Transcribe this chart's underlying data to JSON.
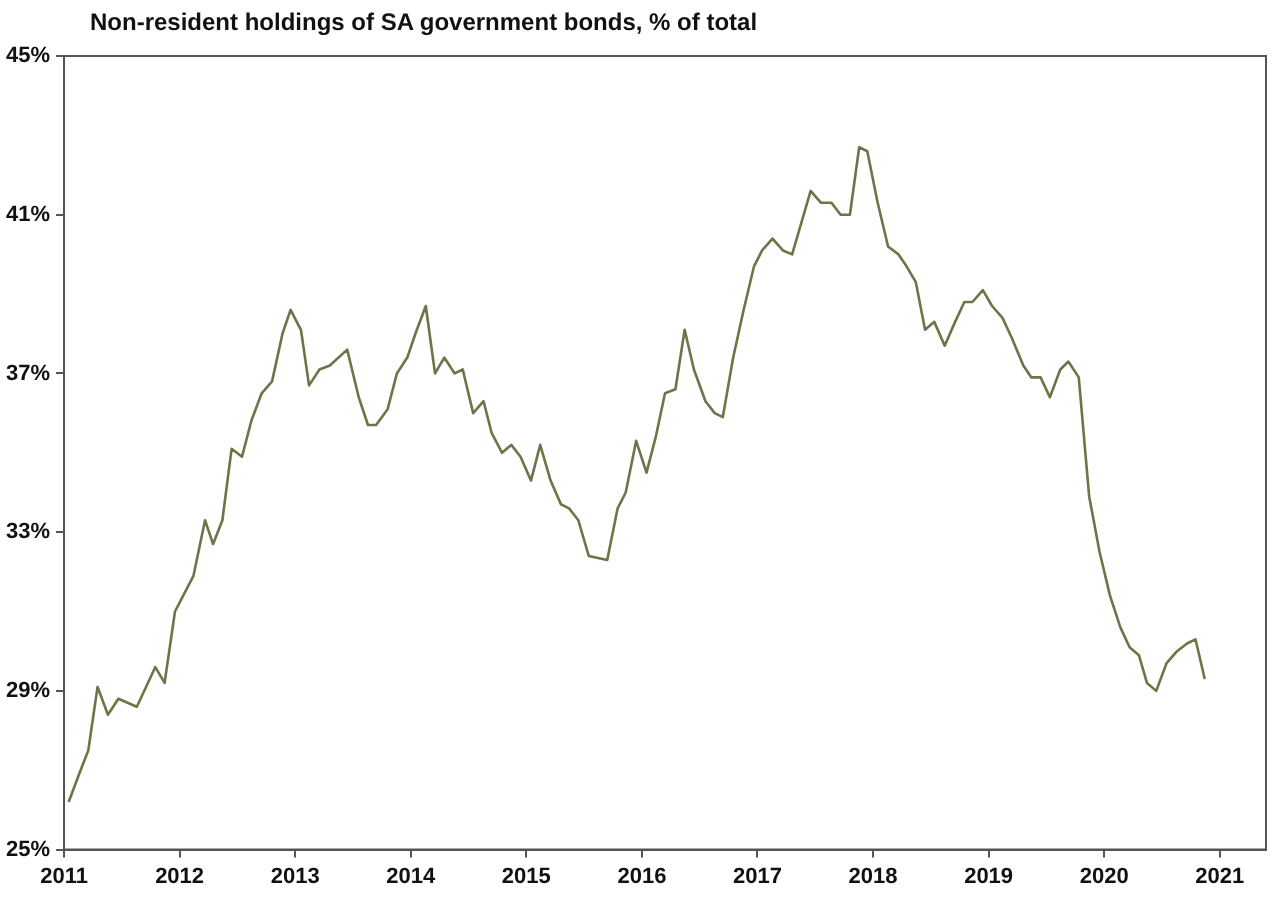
{
  "chart_data": {
    "type": "line",
    "title": "Non-resident holdings of SA government bonds, % of total",
    "x": [
      2011.04,
      2011.13,
      2011.21,
      2011.29,
      2011.38,
      2011.47,
      2011.63,
      2011.79,
      2011.87,
      2011.96,
      2012.12,
      2012.22,
      2012.29,
      2012.37,
      2012.45,
      2012.54,
      2012.62,
      2012.71,
      2012.8,
      2012.89,
      2012.96,
      2013.05,
      2013.12,
      2013.21,
      2013.3,
      2013.45,
      2013.55,
      2013.63,
      2013.7,
      2013.8,
      2013.88,
      2013.97,
      2014.04,
      2014.13,
      2014.21,
      2014.29,
      2014.38,
      2014.45,
      2014.54,
      2014.63,
      2014.7,
      2014.79,
      2014.87,
      2014.95,
      2015.04,
      2015.12,
      2015.21,
      2015.3,
      2015.37,
      2015.45,
      2015.54,
      2015.7,
      2015.79,
      2015.86,
      2015.95,
      2016.04,
      2016.12,
      2016.2,
      2016.29,
      2016.37,
      2016.45,
      2016.55,
      2016.63,
      2016.7,
      2016.79,
      2016.88,
      2016.97,
      2017.04,
      2017.13,
      2017.22,
      2017.3,
      2017.39,
      2017.46,
      2017.55,
      2017.64,
      2017.72,
      2017.8,
      2017.88,
      2017.95,
      2018.04,
      2018.13,
      2018.22,
      2018.29,
      2018.37,
      2018.45,
      2018.53,
      2018.62,
      2018.71,
      2018.79,
      2018.86,
      2018.95,
      2019.03,
      2019.12,
      2019.2,
      2019.3,
      2019.37,
      2019.45,
      2019.53,
      2019.62,
      2019.69,
      2019.78,
      2019.87,
      2019.96,
      2020.05,
      2020.14,
      2020.22,
      2020.3,
      2020.37,
      2020.45,
      2020.54,
      2020.63,
      2020.72,
      2020.79,
      2020.87
    ],
    "series": [
      {
        "color": "#6b7548",
        "values": [
          26.2,
          26.9,
          27.5,
          29.1,
          28.4,
          28.8,
          28.6,
          29.6,
          29.2,
          31.0,
          31.9,
          33.3,
          32.7,
          33.3,
          35.1,
          34.9,
          35.8,
          36.5,
          36.8,
          38.0,
          38.6,
          38.1,
          36.7,
          37.1,
          37.2,
          37.6,
          36.4,
          35.7,
          35.7,
          36.1,
          37.0,
          37.4,
          38.0,
          38.7,
          37.0,
          37.4,
          37.0,
          37.1,
          36.0,
          36.3,
          35.5,
          35.0,
          35.2,
          34.9,
          34.3,
          35.2,
          34.3,
          33.7,
          33.6,
          33.3,
          32.4,
          32.3,
          33.6,
          34.0,
          35.3,
          34.5,
          35.4,
          36.5,
          36.6,
          38.1,
          37.1,
          36.3,
          36.0,
          35.9,
          37.4,
          38.6,
          39.7,
          40.1,
          40.4,
          40.1,
          40.0,
          40.9,
          41.6,
          41.3,
          41.3,
          41.0,
          41.0,
          42.7,
          42.6,
          41.3,
          40.2,
          40.0,
          39.7,
          39.3,
          38.1,
          38.3,
          37.7,
          38.3,
          38.8,
          38.8,
          39.1,
          38.7,
          38.4,
          37.9,
          37.2,
          36.9,
          36.9,
          36.4,
          37.1,
          37.3,
          36.9,
          33.9,
          32.5,
          31.4,
          30.6,
          30.1,
          29.9,
          29.2,
          29.0,
          29.7,
          30.0,
          30.2,
          30.3,
          29.3
        ]
      }
    ],
    "xlim": [
      2011,
      2021.4
    ],
    "xticks": [
      2011,
      2012,
      2013,
      2014,
      2015,
      2016,
      2017,
      2018,
      2019,
      2020,
      2021
    ],
    "ylim": [
      25,
      45
    ],
    "yticks": [
      {
        "value": 25,
        "label": "25%"
      },
      {
        "value": 29,
        "label": "29%"
      },
      {
        "value": 33,
        "label": "33%"
      },
      {
        "value": 37,
        "label": "37%"
      },
      {
        "value": 41,
        "label": "41%"
      },
      {
        "value": 45,
        "label": "45%"
      }
    ],
    "grid": false,
    "legend": false,
    "marker": "none",
    "line_style": "solid"
  }
}
